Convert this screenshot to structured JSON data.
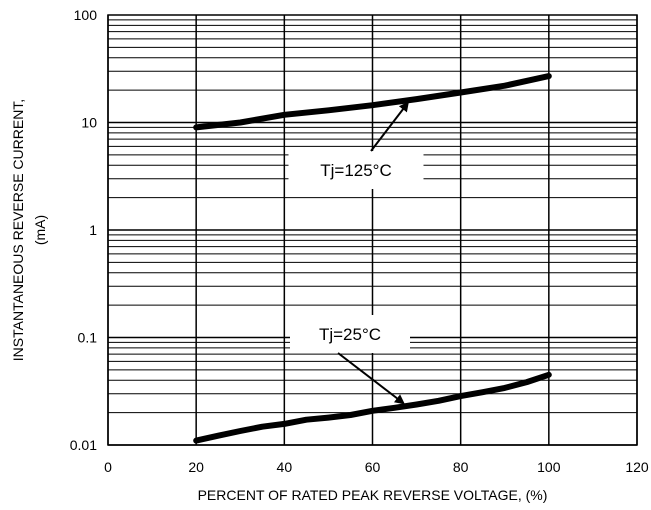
{
  "chart_data": {
    "type": "line",
    "xlabel": "PERCENT OF RATED PEAK REVERSE VOLTAGE, (%)",
    "ylabel_line1": "INSTANTANEOUS REVERSE CURRENT,",
    "ylabel_line2": "(mA)",
    "xlim": [
      0,
      120
    ],
    "ylim": [
      0.01,
      100
    ],
    "y_scale": "log",
    "grid": true,
    "x_ticks": [
      0,
      20,
      40,
      60,
      80,
      100,
      120
    ],
    "x_tick_labels": [
      "0",
      "20",
      "40",
      "60",
      "80",
      "100",
      "120"
    ],
    "y_ticks": [
      0.01,
      0.1,
      1,
      10,
      100
    ],
    "y_tick_labels": [
      "0.01",
      "0.1",
      "1",
      "10",
      "100"
    ],
    "series": [
      {
        "name": "Tj=125°C",
        "x": [
          20,
          30,
          40,
          50,
          60,
          70,
          80,
          90,
          100
        ],
        "y": [
          9,
          10,
          11.8,
          13,
          14.5,
          16.5,
          19,
          22,
          27
        ]
      },
      {
        "name": "Tj=25°C",
        "x": [
          20,
          25,
          30,
          35,
          40,
          45,
          50,
          55,
          60,
          65,
          70,
          75,
          80,
          85,
          90,
          95,
          100
        ],
        "y": [
          0.011,
          0.0122,
          0.0135,
          0.0148,
          0.0157,
          0.0172,
          0.018,
          0.019,
          0.0208,
          0.0222,
          0.0238,
          0.0258,
          0.0285,
          0.031,
          0.034,
          0.0385,
          0.045
        ]
      }
    ],
    "annotations": [
      {
        "text": "Tj=125°C",
        "series": 0,
        "target_x": 68,
        "target_y": 16.2
      },
      {
        "text": "Tj=25°C",
        "series": 1,
        "target_x": 67,
        "target_y": 0.023
      }
    ]
  }
}
